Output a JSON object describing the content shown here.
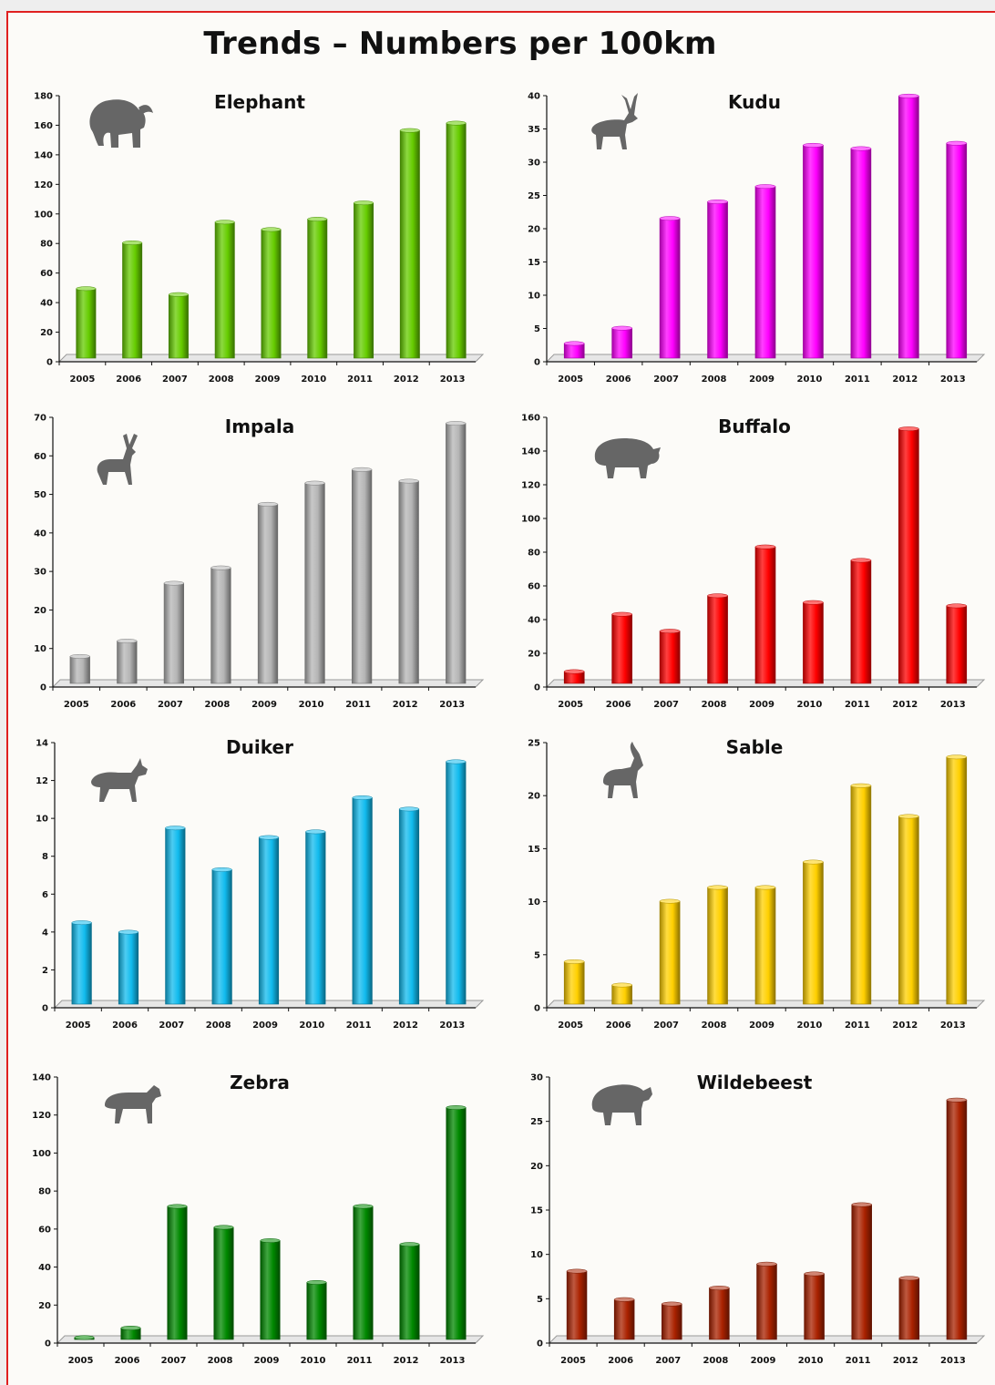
{
  "page_title": "Trends – Numbers per 100km",
  "chart_data": [
    {
      "type": "bar",
      "title": "Elephant",
      "icon": "elephant-icon",
      "color": "#66cc00",
      "categories": [
        "2005",
        "2006",
        "2007",
        "2008",
        "2009",
        "2010",
        "2011",
        "2012",
        "2013"
      ],
      "values": [
        47,
        78,
        43,
        92,
        87,
        94,
        105,
        154,
        159
      ],
      "ylim": [
        0,
        180
      ],
      "yticks": [
        0,
        20,
        40,
        60,
        80,
        100,
        120,
        140,
        160,
        180
      ]
    },
    {
      "type": "bar",
      "title": "Kudu",
      "icon": "kudu-icon",
      "color": "#ff00ff",
      "categories": [
        "2005",
        "2006",
        "2007",
        "2008",
        "2009",
        "2010",
        "2011",
        "2012",
        "2013"
      ],
      "values": [
        2.2,
        4.5,
        21,
        23.5,
        25.8,
        32,
        31.5,
        39.4,
        32.3
      ],
      "ylim": [
        0,
        40
      ],
      "yticks": [
        0,
        5,
        10,
        15,
        20,
        25,
        30,
        35,
        40
      ]
    },
    {
      "type": "bar",
      "title": "Impala",
      "icon": "impala-icon",
      "color": "#b5b5b5",
      "categories": [
        "2005",
        "2006",
        "2007",
        "2008",
        "2009",
        "2010",
        "2011",
        "2012",
        "2013"
      ],
      "values": [
        7,
        11,
        26,
        30,
        46.5,
        52,
        55.5,
        52.5,
        67.5
      ],
      "ylim": [
        0,
        70
      ],
      "yticks": [
        0,
        10,
        20,
        30,
        40,
        50,
        60,
        70
      ]
    },
    {
      "type": "bar",
      "title": "Buffalo",
      "icon": "buffalo-icon",
      "color": "#ff0000",
      "categories": [
        "2005",
        "2006",
        "2007",
        "2008",
        "2009",
        "2010",
        "2011",
        "2012",
        "2013"
      ],
      "values": [
        7,
        41,
        31,
        52,
        81,
        48,
        73,
        151,
        46
      ],
      "ylim": [
        0,
        160
      ],
      "yticks": [
        0,
        20,
        40,
        60,
        80,
        100,
        120,
        140,
        160
      ]
    },
    {
      "type": "bar",
      "title": "Duiker",
      "icon": "duiker-icon",
      "color": "#11bbee",
      "categories": [
        "2005",
        "2006",
        "2007",
        "2008",
        "2009",
        "2010",
        "2011",
        "2012",
        "2013"
      ],
      "values": [
        4.3,
        3.8,
        9.3,
        7.1,
        8.8,
        9.1,
        10.9,
        10.3,
        12.8
      ],
      "ylim": [
        0,
        14
      ],
      "yticks": [
        0,
        2,
        4,
        6,
        8,
        10,
        12,
        14
      ]
    },
    {
      "type": "bar",
      "title": "Sable",
      "icon": "sable-icon",
      "color": "#ffd000",
      "categories": [
        "2005",
        "2006",
        "2007",
        "2008",
        "2009",
        "2010",
        "2011",
        "2012",
        "2013"
      ],
      "values": [
        4,
        1.8,
        9.7,
        11,
        11,
        13.4,
        20.6,
        17.7,
        23.3
      ],
      "ylim": [
        0,
        25
      ],
      "yticks": [
        0,
        5,
        10,
        15,
        20,
        25
      ]
    },
    {
      "type": "bar",
      "title": "Zebra",
      "icon": "zebra-icon",
      "color": "#008800",
      "categories": [
        "2005",
        "2006",
        "2007",
        "2008",
        "2009",
        "2010",
        "2011",
        "2012",
        "2013"
      ],
      "values": [
        1,
        6,
        70,
        59,
        52,
        30,
        70,
        50,
        122
      ],
      "ylim": [
        0,
        140
      ],
      "yticks": [
        0,
        20,
        40,
        60,
        80,
        100,
        120,
        140
      ]
    },
    {
      "type": "bar",
      "title": "Wildebeest",
      "icon": "wildebeest-icon",
      "color": "#aa2200",
      "categories": [
        "2005",
        "2006",
        "2007",
        "2008",
        "2009",
        "2010",
        "2011",
        "2012",
        "2013"
      ],
      "values": [
        7.7,
        4.5,
        4,
        5.8,
        8.5,
        7.4,
        15.2,
        6.9,
        27
      ],
      "ylim": [
        0,
        30
      ],
      "yticks": [
        0,
        5,
        10,
        15,
        20,
        25,
        30
      ]
    }
  ]
}
